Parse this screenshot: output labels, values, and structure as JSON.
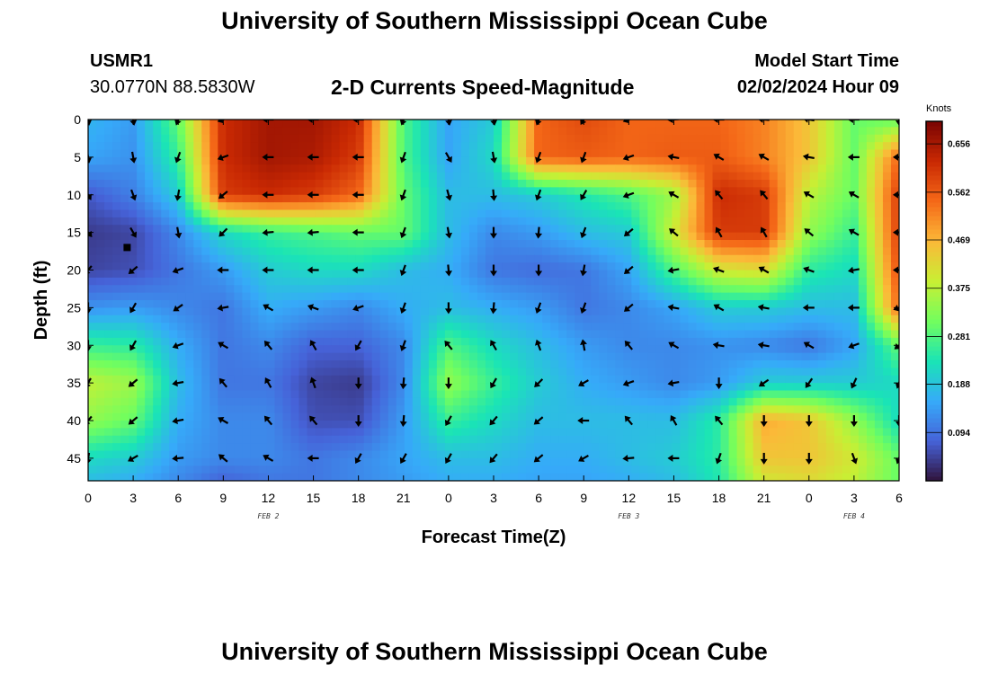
{
  "header": {
    "title": "University of Southern Mississippi Ocean Cube",
    "station_id": "USMR1",
    "station_coords": "30.0770N  88.5830W",
    "plot_title": "2-D Currents Speed-Magnitude",
    "model_label": "Model Start Time",
    "model_time": "02/02/2024 Hour 09"
  },
  "footer": {
    "title": "University of Southern Mississippi Ocean Cube"
  },
  "chart_data": {
    "type": "heatmap",
    "xlabel": "Forecast Time(Z)",
    "ylabel": "Depth (ft)",
    "x_hours": [
      0,
      3,
      6,
      9,
      12,
      15,
      18,
      21,
      24,
      27,
      30,
      33,
      36,
      39,
      42,
      45,
      48,
      51,
      54
    ],
    "x_tick_labels": [
      "0",
      "3",
      "6",
      "9",
      "12",
      "15",
      "18",
      "21",
      "0",
      "3",
      "6",
      "9",
      "12",
      "15",
      "18",
      "21",
      "0",
      "3",
      "6"
    ],
    "day_labels": [
      {
        "text": "FEB 2",
        "hour": 12
      },
      {
        "text": "FEB 3",
        "hour": 36
      },
      {
        "text": "FEB 4",
        "hour": 51
      }
    ],
    "y_ticks": [
      0,
      5,
      10,
      15,
      20,
      25,
      30,
      35,
      40,
      45
    ],
    "xlim": [
      0,
      54
    ],
    "ylim": [
      0,
      48
    ],
    "y_inverted": true,
    "colorbar": {
      "unit": "Knots",
      "min": 0.0,
      "max": 0.7,
      "labels": [
        "0.656",
        "0.562",
        "0.469",
        "0.375",
        "0.281",
        "0.188",
        "0.094"
      ],
      "label_values": [
        0.656,
        0.562,
        0.469,
        0.375,
        0.281,
        0.188,
        0.094
      ],
      "colormap": [
        "#30123b",
        "#4662d8",
        "#36aaf9",
        "#1ae4b6",
        "#72fe5e",
        "#c8ef34",
        "#fbb938",
        "#f56918",
        "#c92903",
        "#7a0403"
      ]
    },
    "speed_knots": [
      {
        "depth": 0,
        "values": [
          0.17,
          0.14,
          0.3,
          0.62,
          0.66,
          0.66,
          0.62,
          0.28,
          0.15,
          0.2,
          0.55,
          0.58,
          0.55,
          0.55,
          0.55,
          0.52,
          0.45,
          0.3,
          0.3
        ]
      },
      {
        "depth": 5,
        "values": [
          0.15,
          0.13,
          0.26,
          0.62,
          0.66,
          0.65,
          0.6,
          0.28,
          0.15,
          0.22,
          0.55,
          0.56,
          0.55,
          0.56,
          0.56,
          0.52,
          0.45,
          0.3,
          0.55
        ]
      },
      {
        "depth": 10,
        "values": [
          0.07,
          0.11,
          0.2,
          0.6,
          0.62,
          0.6,
          0.55,
          0.3,
          0.18,
          0.18,
          0.2,
          0.24,
          0.28,
          0.35,
          0.62,
          0.6,
          0.38,
          0.3,
          0.6
        ]
      },
      {
        "depth": 15,
        "values": [
          0.04,
          0.05,
          0.12,
          0.22,
          0.26,
          0.28,
          0.3,
          0.3,
          0.18,
          0.12,
          0.14,
          0.18,
          0.2,
          0.4,
          0.6,
          0.6,
          0.34,
          0.26,
          0.6
        ]
      },
      {
        "depth": 20,
        "values": [
          0.05,
          0.06,
          0.1,
          0.14,
          0.2,
          0.22,
          0.22,
          0.18,
          0.16,
          0.1,
          0.09,
          0.1,
          0.15,
          0.28,
          0.4,
          0.42,
          0.25,
          0.22,
          0.58
        ]
      },
      {
        "depth": 25,
        "values": [
          0.13,
          0.14,
          0.12,
          0.1,
          0.16,
          0.14,
          0.12,
          0.16,
          0.18,
          0.16,
          0.14,
          0.1,
          0.12,
          0.15,
          0.2,
          0.2,
          0.18,
          0.18,
          0.55
        ]
      },
      {
        "depth": 30,
        "values": [
          0.26,
          0.25,
          0.16,
          0.1,
          0.12,
          0.08,
          0.08,
          0.12,
          0.28,
          0.22,
          0.18,
          0.14,
          0.12,
          0.12,
          0.13,
          0.12,
          0.1,
          0.15,
          0.3
        ]
      },
      {
        "depth": 35,
        "values": [
          0.38,
          0.35,
          0.18,
          0.1,
          0.1,
          0.05,
          0.04,
          0.12,
          0.34,
          0.26,
          0.2,
          0.16,
          0.14,
          0.12,
          0.14,
          0.2,
          0.2,
          0.2,
          0.22
        ]
      },
      {
        "depth": 40,
        "values": [
          0.34,
          0.3,
          0.16,
          0.12,
          0.12,
          0.06,
          0.06,
          0.14,
          0.26,
          0.22,
          0.18,
          0.18,
          0.18,
          0.18,
          0.25,
          0.48,
          0.45,
          0.34,
          0.22
        ]
      },
      {
        "depth": 45,
        "values": [
          0.22,
          0.2,
          0.14,
          0.12,
          0.12,
          0.1,
          0.12,
          0.15,
          0.18,
          0.18,
          0.16,
          0.16,
          0.18,
          0.2,
          0.25,
          0.45,
          0.45,
          0.4,
          0.3
        ]
      },
      {
        "depth": 48,
        "values": [
          0.18,
          0.16,
          0.12,
          0.08,
          0.1,
          0.1,
          0.12,
          0.14,
          0.16,
          0.16,
          0.15,
          0.15,
          0.16,
          0.18,
          0.24,
          0.4,
          0.42,
          0.38,
          0.3
        ]
      }
    ],
    "arrow_depths": [
      0,
      5,
      10,
      15,
      20,
      25,
      30,
      35,
      40,
      45
    ],
    "arrow_directions_deg": [
      {
        "depth": 0,
        "values": [
          170,
          170,
          200,
          250,
          270,
          270,
          270,
          200,
          170,
          170,
          200,
          210,
          250,
          265,
          270,
          275,
          280,
          270,
          180
        ]
      },
      {
        "depth": 5,
        "values": [
          170,
          170,
          200,
          250,
          270,
          270,
          270,
          200,
          150,
          170,
          200,
          200,
          250,
          280,
          300,
          300,
          280,
          270,
          270
        ]
      },
      {
        "depth": 10,
        "values": [
          150,
          160,
          190,
          230,
          270,
          270,
          270,
          200,
          165,
          175,
          200,
          210,
          250,
          300,
          320,
          320,
          300,
          300,
          270
        ]
      },
      {
        "depth": 15,
        "values": [
          140,
          150,
          170,
          225,
          265,
          265,
          270,
          200,
          170,
          180,
          185,
          200,
          230,
          310,
          330,
          330,
          310,
          300,
          270
        ]
      },
      {
        "depth": 20,
        "values": [
          220,
          230,
          250,
          270,
          270,
          270,
          270,
          200,
          175,
          180,
          180,
          190,
          230,
          260,
          290,
          300,
          290,
          260,
          270
        ]
      },
      {
        "depth": 25,
        "values": [
          180,
          210,
          235,
          260,
          300,
          290,
          250,
          200,
          180,
          185,
          200,
          200,
          230,
          280,
          300,
          280,
          270,
          270,
          250
        ]
      },
      {
        "depth": 30,
        "values": [
          180,
          210,
          250,
          300,
          320,
          330,
          210,
          200,
          320,
          330,
          340,
          350,
          320,
          300,
          280,
          280,
          300,
          250,
          230
        ]
      },
      {
        "depth": 35,
        "values": [
          210,
          230,
          260,
          320,
          330,
          340,
          180,
          185,
          180,
          210,
          225,
          240,
          250,
          260,
          180,
          235,
          215,
          205,
          200
        ]
      },
      {
        "depth": 40,
        "values": [
          220,
          230,
          260,
          300,
          320,
          320,
          180,
          185,
          210,
          220,
          230,
          270,
          320,
          330,
          320,
          180,
          180,
          180,
          180
        ]
      },
      {
        "depth": 45,
        "values": [
          190,
          240,
          265,
          310,
          300,
          270,
          210,
          210,
          210,
          220,
          230,
          240,
          265,
          270,
          200,
          180,
          180,
          160,
          200
        ]
      }
    ],
    "marker": {
      "hour": 2.6,
      "depth": 17
    }
  }
}
